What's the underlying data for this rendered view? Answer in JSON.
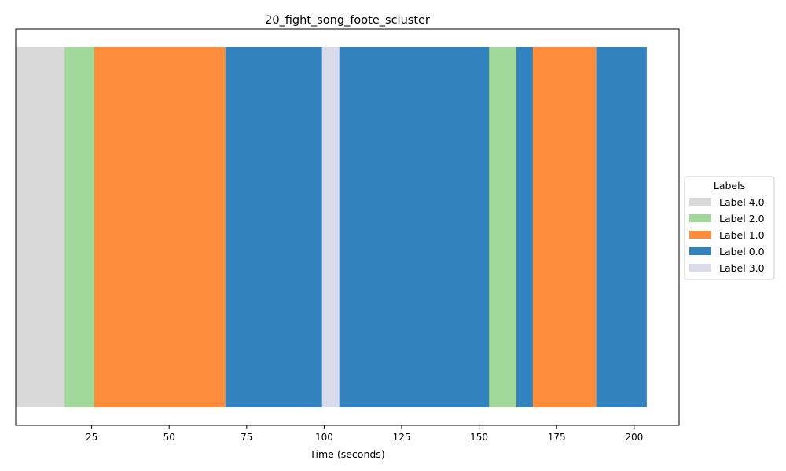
{
  "chart_data": {
    "type": "bar",
    "orientation": "horizontal-segments",
    "title": "20_fight_song_foote_scluster",
    "xlabel": "Time (seconds)",
    "ylabel": "",
    "xlim": [
      0.5,
      214.5
    ],
    "xticks": [
      25,
      50,
      75,
      100,
      125,
      150,
      175,
      200
    ],
    "xtick_labels": [
      "25",
      "50",
      "75",
      "100",
      "125",
      "150",
      "175",
      "200"
    ],
    "grid": false,
    "legend": {
      "title": "Labels",
      "placement": "center-right outside",
      "entries": [
        {
          "label": "Label 4.0",
          "color": "#d9d9d9"
        },
        {
          "label": "Label 2.0",
          "color": "#a1d99b"
        },
        {
          "label": "Label 1.0",
          "color": "#fd8d3c"
        },
        {
          "label": "Label 0.0",
          "color": "#3182bd"
        },
        {
          "label": "Label 3.0",
          "color": "#dadaeb"
        }
      ]
    },
    "segments": [
      {
        "start": 0.5,
        "end": 16.3,
        "label": "Label 4.0"
      },
      {
        "start": 16.3,
        "end": 25.8,
        "label": "Label 2.0"
      },
      {
        "start": 25.8,
        "end": 68.2,
        "label": "Label 1.0"
      },
      {
        "start": 68.2,
        "end": 99.3,
        "label": "Label 0.0"
      },
      {
        "start": 99.3,
        "end": 104.9,
        "label": "Label 3.0"
      },
      {
        "start": 104.9,
        "end": 153.2,
        "label": "Label 0.0"
      },
      {
        "start": 153.2,
        "end": 162.0,
        "label": "Label 2.0"
      },
      {
        "start": 162.0,
        "end": 167.3,
        "label": "Label 0.0"
      },
      {
        "start": 167.3,
        "end": 187.8,
        "label": "Label 1.0"
      },
      {
        "start": 187.8,
        "end": 204.0,
        "label": "Label 0.0"
      }
    ]
  }
}
